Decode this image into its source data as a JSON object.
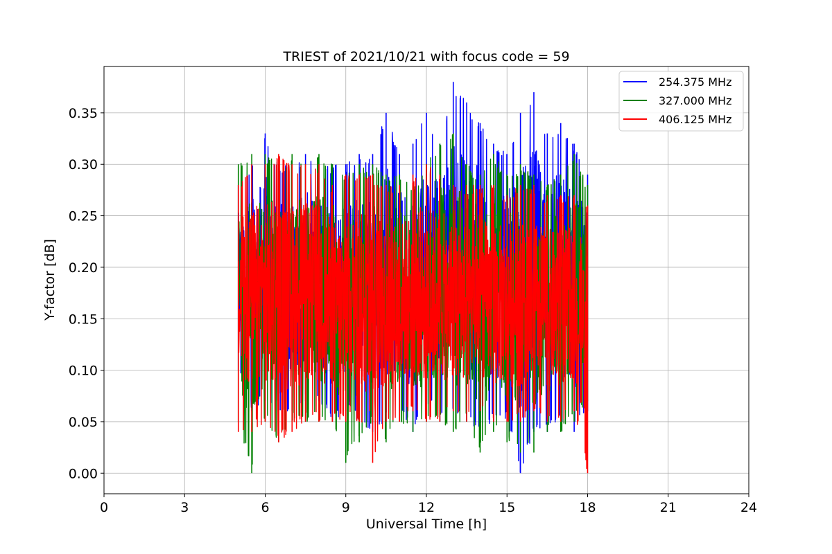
{
  "chart_data": {
    "type": "line",
    "title": "TRIEST of 2021/10/21 with focus code = 59",
    "xlabel": "Universal Time [h]",
    "ylabel": "Y-factor [dB]",
    "xlim": [
      0,
      24
    ],
    "ylim": [
      -0.02,
      0.395
    ],
    "xticks": [
      0,
      3,
      6,
      9,
      12,
      15,
      18,
      21,
      24
    ],
    "xtick_labels": [
      "0",
      "3",
      "6",
      "9",
      "12",
      "15",
      "18",
      "21",
      "24"
    ],
    "yticks": [
      0.0,
      0.05,
      0.1,
      0.15,
      0.2,
      0.25,
      0.3,
      0.35
    ],
    "ytick_labels": [
      "0.00",
      "0.05",
      "0.10",
      "0.15",
      "0.20",
      "0.25",
      "0.30",
      "0.35"
    ],
    "grid": true,
    "legend_position": "top-right",
    "series": [
      {
        "name": "254.375 MHz",
        "color": "#0000ff",
        "x": [
          5.0,
          5.5,
          6.0,
          6.5,
          7.0,
          7.5,
          8.0,
          8.5,
          9.0,
          9.5,
          10.0,
          10.5,
          11.0,
          11.5,
          12.0,
          12.5,
          13.0,
          13.5,
          14.0,
          14.5,
          15.0,
          15.5,
          16.0,
          16.5,
          17.0,
          17.5,
          18.0
        ],
        "y_max": [
          0.28,
          0.3,
          0.33,
          0.3,
          0.3,
          0.31,
          0.3,
          0.3,
          0.3,
          0.31,
          0.31,
          0.35,
          0.31,
          0.32,
          0.35,
          0.32,
          0.38,
          0.36,
          0.34,
          0.32,
          0.31,
          0.35,
          0.37,
          0.33,
          0.34,
          0.32,
          0.29
        ],
        "y_min": [
          0.1,
          0.06,
          0.07,
          0.06,
          0.06,
          0.07,
          0.07,
          0.05,
          0.06,
          0.05,
          0.04,
          0.05,
          0.06,
          0.04,
          0.07,
          0.05,
          0.06,
          0.05,
          0.04,
          0.05,
          0.05,
          0.0,
          0.04,
          0.04,
          0.05,
          0.04,
          0.06
        ]
      },
      {
        "name": "327.000 MHz",
        "color": "#008000",
        "x": [
          5.0,
          5.5,
          6.0,
          6.5,
          7.0,
          7.5,
          8.0,
          8.5,
          9.0,
          9.5,
          10.0,
          10.5,
          11.0,
          11.5,
          12.0,
          12.5,
          13.0,
          13.5,
          14.0,
          14.5,
          15.0,
          15.5,
          16.0,
          16.5,
          17.0,
          17.5,
          18.0
        ],
        "y_max": [
          0.3,
          0.31,
          0.31,
          0.3,
          0.31,
          0.3,
          0.31,
          0.3,
          0.29,
          0.3,
          0.3,
          0.29,
          0.29,
          0.28,
          0.3,
          0.32,
          0.33,
          0.3,
          0.29,
          0.31,
          0.29,
          0.3,
          0.29,
          0.28,
          0.29,
          0.31,
          0.28
        ],
        "y_min": [
          0.05,
          0.0,
          0.05,
          0.03,
          0.05,
          0.05,
          0.05,
          0.05,
          0.01,
          0.03,
          0.05,
          0.03,
          0.05,
          0.04,
          0.05,
          0.05,
          0.04,
          0.05,
          0.02,
          0.04,
          0.03,
          0.02,
          0.02,
          0.04,
          0.04,
          0.05,
          0.07
        ]
      },
      {
        "name": "406.125 MHz",
        "color": "#ff0000",
        "x": [
          5.0,
          5.5,
          6.0,
          6.5,
          7.0,
          7.5,
          8.0,
          8.5,
          9.0,
          9.5,
          10.0,
          10.5,
          11.0,
          11.5,
          12.0,
          12.5,
          13.0,
          13.5,
          14.0,
          14.5,
          15.0,
          15.5,
          16.0,
          16.5,
          17.0,
          17.5,
          18.0
        ],
        "y_max": [
          0.28,
          0.3,
          0.3,
          0.31,
          0.3,
          0.3,
          0.3,
          0.28,
          0.29,
          0.29,
          0.29,
          0.28,
          0.28,
          0.29,
          0.3,
          0.29,
          0.28,
          0.28,
          0.28,
          0.28,
          0.27,
          0.28,
          0.28,
          0.27,
          0.27,
          0.27,
          0.26
        ],
        "y_min": [
          0.04,
          0.04,
          0.05,
          0.03,
          0.04,
          0.05,
          0.05,
          0.05,
          0.05,
          0.05,
          0.01,
          0.05,
          0.05,
          0.06,
          0.05,
          0.05,
          0.06,
          0.05,
          0.06,
          0.05,
          0.05,
          0.05,
          0.06,
          0.05,
          0.05,
          0.06,
          0.0
        ]
      }
    ]
  }
}
